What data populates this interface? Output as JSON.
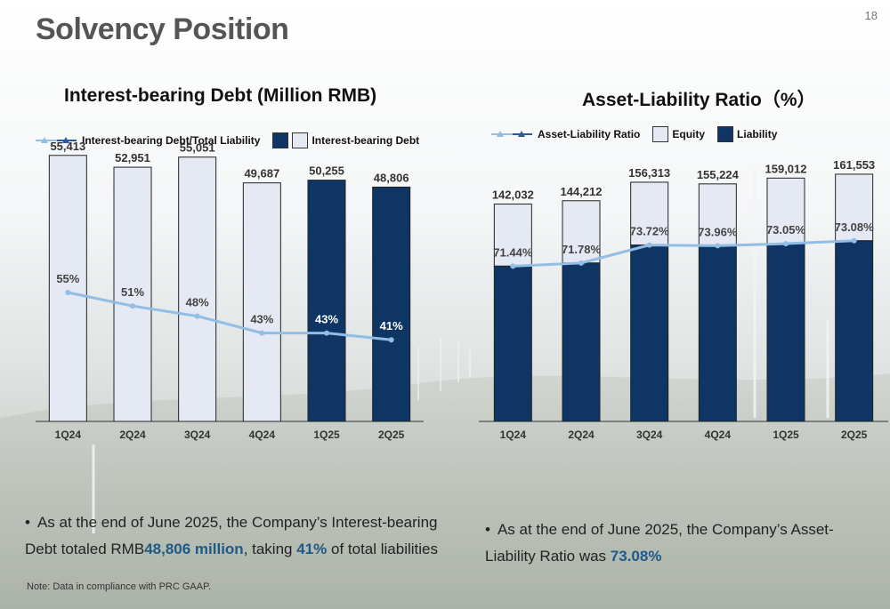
{
  "page_title": "Solvency Position",
  "page_number": "18",
  "colors": {
    "liability_dark": "#0e3563",
    "light_bar": "#e4e9f3",
    "line": "#92bde4",
    "highlight": "#1f5a86"
  },
  "chart_data": [
    {
      "type": "bar",
      "title": "Interest-bearing Debt (Million RMB)",
      "legend": {
        "line_label": "Interest-bearing Debt/Total Liability",
        "bar_label": "Interest-bearing Debt"
      },
      "categories": [
        "1Q24",
        "2Q24",
        "3Q24",
        "4Q24",
        "1Q25",
        "2Q25"
      ],
      "values": [
        55413,
        52951,
        55051,
        49687,
        50255,
        48806
      ],
      "value_labels": [
        "55,413",
        "52,951",
        "55,051",
        "49,687",
        "50,255",
        "48,806"
      ],
      "bar_styles": [
        "light",
        "light",
        "light",
        "light",
        "dark",
        "dark"
      ],
      "ratio_values": [
        55,
        51,
        48,
        43,
        43,
        41
      ],
      "ratio_labels": [
        "55%",
        "51%",
        "48%",
        "43%",
        "43%",
        "41%"
      ],
      "ylim": [
        0,
        60000
      ],
      "grid": false
    },
    {
      "type": "bar",
      "title": "Asset-Liability Ratio（%）",
      "legend": {
        "line_label": "Asset-Liability Ratio",
        "equity_label": "Equity",
        "liability_label": "Liability"
      },
      "categories": [
        "1Q24",
        "2Q24",
        "3Q24",
        "4Q24",
        "1Q25",
        "2Q25"
      ],
      "totals": [
        142032,
        144212,
        156313,
        155224,
        159012,
        161553
      ],
      "total_labels": [
        "142,032",
        "144,212",
        "156,313",
        "155,224",
        "159,012",
        "161,553"
      ],
      "ratio_values": [
        71.44,
        71.78,
        73.72,
        73.96,
        73.05,
        73.08
      ],
      "ratio_labels": [
        "71.44%",
        "71.78%",
        "73.72%",
        "73.96%",
        "73.05%",
        "73.08%"
      ],
      "ylim": [
        0,
        165000
      ],
      "grid": false
    }
  ],
  "bullets": {
    "left": {
      "pre": "As at the end of June 2025, the Company’s Interest-bearing Debt totaled RMB",
      "amount": "48,806 million",
      "mid": ", taking ",
      "pct": "41%",
      "post": " of total liabilities"
    },
    "right": {
      "pre": "As at the end of June 2025, the Company’s Asset-Liability Ratio was ",
      "pct": "73.08%"
    }
  },
  "note": "Note: Data in compliance with PRC GAAP."
}
